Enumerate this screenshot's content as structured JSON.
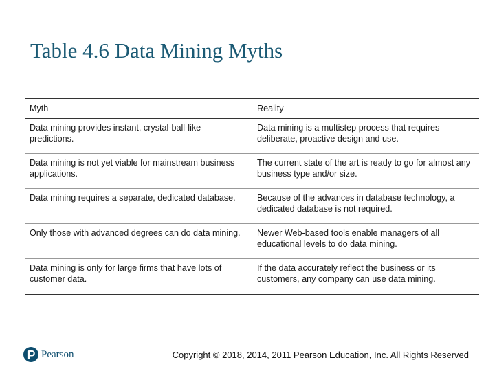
{
  "title": "Table 4.6 Data Mining Myths",
  "table": {
    "headers": [
      "Myth",
      "Reality"
    ],
    "rows": [
      {
        "myth": "Data mining provides instant, crystal-ball-like predictions.",
        "reality": "Data mining is a multistep process that requires deliberate, proactive design and use."
      },
      {
        "myth": "Data mining is not yet viable for mainstream business applications.",
        "reality": "The current state of the art is ready to go for almost any business type and/or size."
      },
      {
        "myth": "Data mining requires a separate, dedicated database.",
        "reality": "Because of the advances in database technology, a dedicated database is not required."
      },
      {
        "myth": "Only those with advanced degrees can do data mining.",
        "reality": "Newer Web-based tools enable managers of all educational levels to do data mining."
      },
      {
        "myth": "Data mining is only for large firms that have lots of customer data.",
        "reality": "If the data accurately reflect the business or its customers, any company can use data mining."
      }
    ]
  },
  "footer": {
    "logo_text": "Pearson",
    "copyright": "Copyright © 2018, 2014, 2011 Pearson Education, Inc. All Rights Reserved"
  },
  "colors": {
    "title": "#1b5a74",
    "brand": "#0d4d6e"
  }
}
